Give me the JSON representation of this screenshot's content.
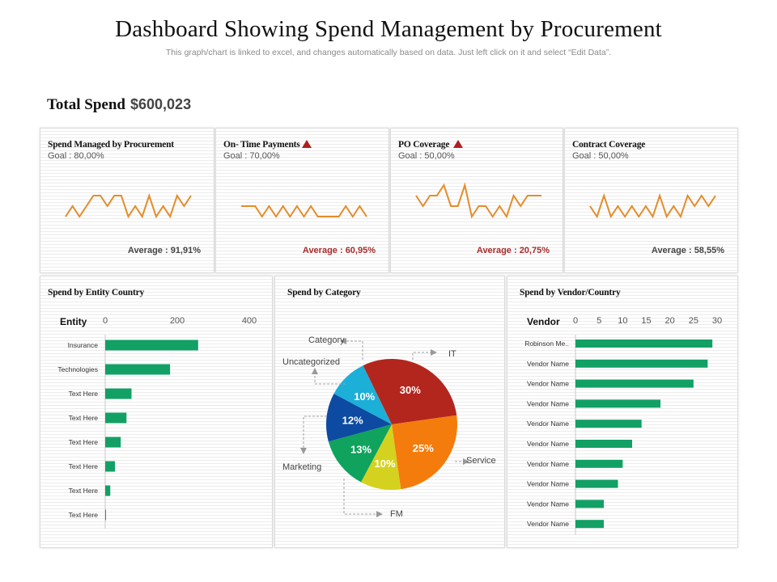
{
  "header": {
    "title": "Dashboard Showing Spend Management by Procurement",
    "subtitle": "This graph/chart is linked to excel, and changes automatically based on data. Just left click on it and select “Edit Data”."
  },
  "total": {
    "label": "Total Spend",
    "value": "$600,023"
  },
  "kpis": [
    {
      "title": "Spend Managed by Procurement",
      "alert": false,
      "goal": "Goal : 80,00%",
      "average": "Average : 91,91%",
      "average_status": "good",
      "trend_levels": [
        0,
        1,
        0,
        1,
        2,
        2,
        1,
        2,
        2,
        0,
        1,
        0,
        2,
        0,
        1,
        0,
        2,
        1,
        2
      ],
      "trend_max_level": 3
    },
    {
      "title": "On- Time Payments",
      "alert": true,
      "goal": "Goal : 70,00%",
      "average": "Average : 60,95%",
      "average_status": "bad",
      "trend_levels": [
        1,
        1,
        1,
        0,
        1,
        0,
        1,
        0,
        1,
        0,
        1,
        0,
        0,
        0,
        0,
        1,
        0,
        1,
        0
      ],
      "trend_max_level": 3
    },
    {
      "title": "PO Coverage",
      "alert": true,
      "goal": "Goal : 50,00%",
      "average": "Average : 20,75%",
      "average_status": "bad",
      "trend_levels": [
        2,
        1,
        2,
        2,
        3,
        1,
        1,
        3,
        0,
        1,
        1,
        0,
        1,
        0,
        2,
        1,
        2,
        2,
        2
      ],
      "trend_max_level": 3
    },
    {
      "title": "Contract Coverage",
      "alert": false,
      "goal": "Goal : 50,00%",
      "average": "Average : 58,55%",
      "average_status": "good",
      "trend_levels": [
        1,
        0,
        2,
        0,
        1,
        0,
        1,
        0,
        1,
        0,
        2,
        0,
        1,
        0,
        2,
        1,
        2,
        1,
        2
      ],
      "trend_max_level": 3
    }
  ],
  "colors": {
    "spark": "#e38c2a",
    "bar": "#12a064",
    "alert": "#b0201f"
  },
  "chart_data": [
    {
      "type": "bar",
      "orientation": "horizontal",
      "title": "Spend by Entity Country",
      "ylabel": "Entity",
      "xlabel": "",
      "xlim": [
        0,
        400
      ],
      "xticks": [
        0,
        200,
        400
      ],
      "categories": [
        "Insurance",
        "Technologies",
        "Text Here",
        "Text Here",
        "Text Here",
        "Text Here",
        "Text Here",
        "Text Here"
      ],
      "values": [
        258,
        180,
        73,
        59,
        43,
        27,
        14,
        2
      ],
      "grid": false
    },
    {
      "type": "pie",
      "title": "Spend by Category",
      "legend_title": "Category",
      "slices": [
        {
          "label": "IT",
          "value": 30,
          "display": "30%",
          "color": "#b3261e"
        },
        {
          "label": "Service",
          "value": 25,
          "display": "25%",
          "color": "#f47c0c"
        },
        {
          "label": "FM",
          "value": 10,
          "display": "10%",
          "color": "#d4d21f"
        },
        {
          "label": "Marketing",
          "value": 13,
          "display": "13%",
          "color": "#0fa35d"
        },
        {
          "label": "Uncategorized",
          "value": 12,
          "display": "12%",
          "color": "#0d4aa1"
        },
        {
          "label": "Uncategorized",
          "value": 10,
          "display": "10%",
          "color": "#1cafd8"
        }
      ],
      "callout_labels": [
        "Category",
        "IT",
        "Uncategorized",
        "Marketing",
        "Service",
        "FM"
      ]
    },
    {
      "type": "bar",
      "orientation": "horizontal",
      "title": "Spend by Vendor/Country",
      "ylabel": "Vendor",
      "xlabel": "",
      "xlim": [
        0,
        30
      ],
      "xticks": [
        0,
        5,
        10,
        15,
        20,
        25,
        30
      ],
      "categories": [
        "Robinson Me..",
        "Vendor Name",
        "Vendor Name",
        "Vendor Name",
        "Vendor Name",
        "Vendor Name",
        "Vendor Name",
        "Vendor Name",
        "Vendor Name",
        "Vendor Name"
      ],
      "values": [
        29,
        28,
        25,
        18,
        14,
        12,
        10,
        9,
        6,
        6
      ],
      "grid": false
    }
  ]
}
